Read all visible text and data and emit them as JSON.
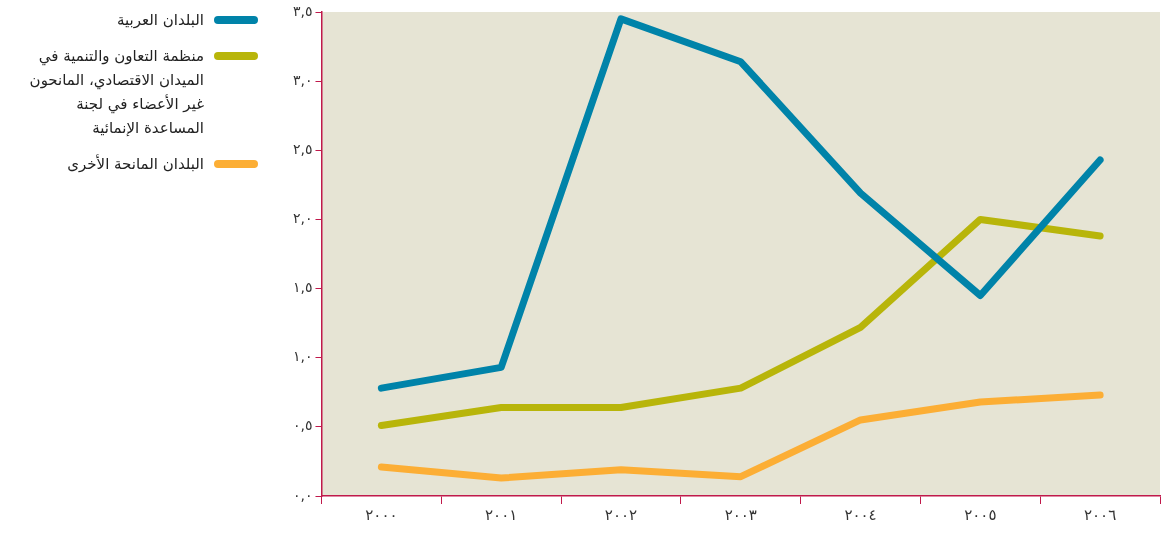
{
  "chart_data": {
    "type": "line",
    "categories": [
      "٢٠٠٠",
      "٢٠٠١",
      "٢٠٠٢",
      "٢٠٠٣",
      "٢٠٠٤",
      "٢٠٠٥",
      "٢٠٠٦"
    ],
    "series": [
      {
        "name": "البلدان العربية",
        "color": "#0083a9",
        "values": [
          0.78,
          0.93,
          3.45,
          3.14,
          2.19,
          1.45,
          2.43
        ]
      },
      {
        "name": "منظمة التعاون والتنمية في الميدان الاقتصادي، المانحون غير الأعضاء في لجنة المساعدة الإنمائية",
        "color": "#b8b50a",
        "values": [
          0.51,
          0.64,
          0.64,
          0.78,
          1.22,
          2.0,
          1.88
        ]
      },
      {
        "name": "البلدان المانحة الأخرى",
        "color": "#fcae35",
        "values": [
          0.21,
          0.13,
          0.19,
          0.14,
          0.55,
          0.68,
          0.73
        ]
      }
    ],
    "ylim": [
      0,
      3.5
    ],
    "yticks": [
      {
        "value": 0,
        "label": "٠,٠"
      },
      {
        "value": 0.5,
        "label": "٠,٥"
      },
      {
        "value": 1,
        "label": "١,٠"
      },
      {
        "value": 1.5,
        "label": "١,٥"
      },
      {
        "value": 2,
        "label": "٢,٠"
      },
      {
        "value": 2.5,
        "label": "٢,٥"
      },
      {
        "value": 3,
        "label": "٣,٠"
      },
      {
        "value": 3.5,
        "label": "٣,٥"
      }
    ],
    "grid": false,
    "legend": "left",
    "marker": "none",
    "line_style": "solid"
  }
}
